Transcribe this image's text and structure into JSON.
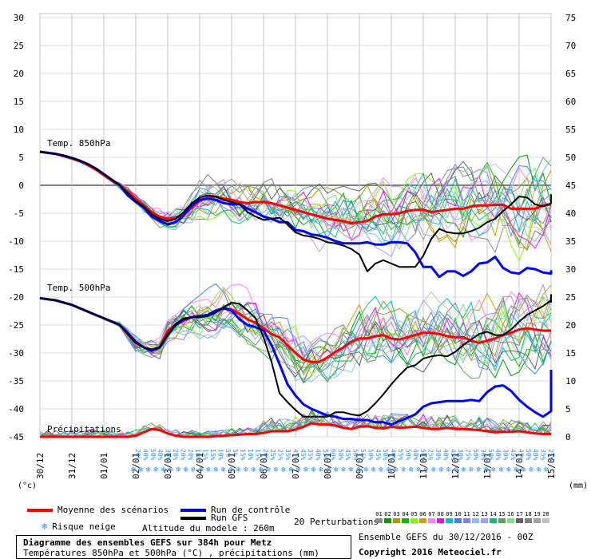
{
  "chart_data": {
    "type": "line",
    "x_labels": [
      "30/12",
      "31/12",
      "01/01",
      "02/01",
      "03/01",
      "04/01",
      "05/01",
      "06/01",
      "07/01",
      "08/01",
      "09/01",
      "10/01",
      "11/01",
      "12/01",
      "13/01",
      "14/01",
      "15/01"
    ],
    "y_left_ticks": [
      30,
      25,
      20,
      15,
      10,
      5,
      0,
      -5,
      -10,
      -15,
      -20,
      -25,
      -30,
      -35,
      -40,
      -45
    ],
    "y_right_ticks": [
      75,
      70,
      65,
      60,
      55,
      50,
      45,
      40,
      35,
      30,
      25,
      20,
      15,
      10,
      5,
      0
    ],
    "left_unit": "(°c)",
    "right_unit": "(mm)",
    "panel_labels": {
      "t850": "Temp. 850hPa",
      "t500": "Temp. 500hPa",
      "precip": "Précipitations"
    },
    "snow_risk_percent": [
      "20%",
      "40%",
      "50%",
      "40%",
      "30%",
      "20%",
      "20%",
      "20%",
      "10%",
      "15%",
      "15%",
      "10%",
      "5%",
      "5%",
      "15%",
      "10%",
      "15%",
      "20%",
      "25%",
      "25%",
      "35%",
      "45%",
      "45%",
      "35%",
      "40%",
      "55%",
      "60%",
      "50%",
      "45%",
      "50%",
      "55%",
      "50%",
      "45%",
      "50%",
      "40%",
      "55%",
      "50%",
      "40%",
      "50%",
      "25%",
      "30%",
      "40%",
      "45%",
      "30%",
      "25%",
      "50%",
      "30%",
      "50%",
      "40%",
      "30%",
      "45%",
      "45%",
      "50%",
      "40%",
      "35%",
      "25%"
    ],
    "series": [
      {
        "name": "Moyenne des scénarios",
        "color": "#ff0000",
        "t850": [
          6,
          5.8,
          5.6,
          5.2,
          4.8,
          4.3,
          3.6,
          2.8,
          1.8,
          0.8,
          0,
          -1.2,
          -2.4,
          -3.6,
          -4.8,
          -5.6,
          -6,
          -5.8,
          -5.2,
          -4,
          -2.8,
          -2.2,
          -2,
          -2.4,
          -2.6,
          -3,
          -3.2,
          -3,
          -3,
          -3.2,
          -3.6,
          -4,
          -4.4,
          -4.8,
          -5.2,
          -5.6,
          -6,
          -6.2,
          -6.4,
          -6.8,
          -6.6,
          -6.4,
          -5.6,
          -5.2,
          -5.2,
          -5,
          -4.6,
          -4.4,
          -4.4,
          -4.8,
          -4.6,
          -4.4,
          -4.2,
          -4.2,
          -3.8,
          -3.6,
          -3.6,
          -3.5,
          -3.5,
          -4.2,
          -4.2,
          -4.2,
          -4.2,
          -3.6,
          -3.4
        ],
        "t500": [
          -20.2,
          -20.4,
          -20.6,
          -21,
          -21.4,
          -22,
          -22.6,
          -23.2,
          -23.8,
          -24.4,
          -25,
          -26.6,
          -28.2,
          -29,
          -29.4,
          -29,
          -26,
          -25,
          -24.2,
          -23.6,
          -23.4,
          -23.2,
          -22.6,
          -22,
          -22.2,
          -23,
          -24,
          -24.6,
          -25.6,
          -26.6,
          -27.2,
          -28.6,
          -30,
          -31.2,
          -31.6,
          -31.6,
          -30.8,
          -29.8,
          -29,
          -28,
          -27.4,
          -27.4,
          -27,
          -26.8,
          -27.4,
          -27.6,
          -27.2,
          -26.8,
          -26.4,
          -26.4,
          -26.6,
          -27,
          -27.2,
          -27.2,
          -27.8,
          -28.2,
          -27.8,
          -27.4,
          -26.8,
          -26.4,
          -25.8,
          -25.6,
          -25.8,
          -26,
          -26
        ],
        "precip": [
          0,
          0,
          0,
          0,
          0,
          0,
          0,
          0,
          0,
          0,
          0,
          0,
          0.2,
          0.8,
          1.4,
          1.2,
          0.6,
          0.2,
          0,
          0,
          0,
          0,
          0.1,
          0.2,
          0.3,
          0.4,
          0.5,
          0.5,
          0.7,
          1,
          1,
          1,
          1.3,
          1.8,
          2.4,
          2.2,
          2.2,
          2,
          1.6,
          1.4,
          1.8,
          1.9,
          1.6,
          1.5,
          1.8,
          1.6,
          1.7,
          1.8,
          1.6,
          1.4,
          1.4,
          1.6,
          1.4,
          1.4,
          1.3,
          1.2,
          1,
          0.8,
          0.9,
          0.9,
          1,
          0.8,
          0.6,
          0.5,
          0.5
        ]
      },
      {
        "name": "Run de contrôle",
        "color": "#0000ff",
        "t850": [
          6,
          5.8,
          5.6,
          5.3,
          4.9,
          4.4,
          3.8,
          3,
          2,
          1,
          0,
          -1.8,
          -3,
          -4,
          -5.6,
          -6.4,
          -7,
          -6.6,
          -5.4,
          -3.6,
          -2.6,
          -2.4,
          -2.6,
          -3.2,
          -3.4,
          -3.4,
          -4.2,
          -4.8,
          -5.6,
          -6,
          -6.6,
          -6.6,
          -8,
          -8.2,
          -8.8,
          -9,
          -9.4,
          -10,
          -10.4,
          -10.4,
          -10.4,
          -10.2,
          -10.6,
          -10.6,
          -10.2,
          -10.2,
          -10.4,
          -12,
          -14.6,
          -14.6,
          -16.4,
          -15.4,
          -15.4,
          -16.2,
          -15.4,
          -14,
          -13.8,
          -12.8,
          -14.8,
          -15.6,
          -15.8,
          -14.8,
          -15,
          -15.6,
          -15.8,
          -15.2
        ],
        "t500": [
          -20.2,
          -20.4,
          -20.6,
          -21,
          -21.4,
          -22,
          -22.6,
          -23.2,
          -23.8,
          -24.4,
          -25,
          -26.4,
          -28,
          -29,
          -29.6,
          -29,
          -26.8,
          -25,
          -24,
          -23.6,
          -23.4,
          -23.2,
          -22.4,
          -22,
          -22.4,
          -24,
          -25,
          -25.4,
          -26,
          -28.6,
          -32,
          -35.6,
          -37.6,
          -39.2,
          -40,
          -40.6,
          -41.2,
          -41.4,
          -41.8,
          -41.8,
          -42,
          -42,
          -42.4,
          -42.4,
          -42.8,
          -42.2,
          -41.6,
          -41,
          -39.6,
          -39,
          -38.8,
          -38.6,
          -38.6,
          -38.6,
          -38.4,
          -38.6,
          -37,
          -36,
          -35.8,
          -36.8,
          -38.4,
          -39.6,
          -40.6,
          -41.4,
          -40.4,
          -38.4,
          -36,
          -33
        ]
      },
      {
        "name": "Run GFS",
        "color": "#000000",
        "t850": [
          6,
          5.8,
          5.6,
          5.3,
          4.9,
          4.4,
          3.8,
          3,
          2,
          1,
          0,
          -1.4,
          -2.8,
          -3.8,
          -5.2,
          -6,
          -6.4,
          -6,
          -4.8,
          -3.2,
          -2.2,
          -1.8,
          -2,
          -2.6,
          -3,
          -3.4,
          -4.8,
          -5.6,
          -6.2,
          -6,
          -5.8,
          -7,
          -8.4,
          -9,
          -9.2,
          -9.6,
          -10.2,
          -10.4,
          -10.8,
          -11.4,
          -12.4,
          -15.4,
          -14,
          -13.4,
          -14,
          -14.6,
          -14.6,
          -14.6,
          -12.6,
          -9.6,
          -7.8,
          -8.4,
          -8.6,
          -8.6,
          -8.2,
          -7.6,
          -6.6,
          -6,
          -4.6,
          -3.4,
          -2,
          -2.2,
          -3.4,
          -3.8,
          -3.2,
          -2.4,
          -2.2,
          -1.6
        ],
        "t500": [
          -20.2,
          -20.4,
          -20.6,
          -21,
          -21.4,
          -22,
          -22.6,
          -23.2,
          -23.8,
          -24.4,
          -25,
          -26.6,
          -28.2,
          -29,
          -29.4,
          -29,
          -26.6,
          -24.8,
          -23.8,
          -23.6,
          -23.6,
          -23.4,
          -22.8,
          -21.8,
          -21,
          -21.2,
          -22.4,
          -23.8,
          -27.2,
          -31.6,
          -37.2,
          -38.8,
          -40.2,
          -41.4,
          -41.4,
          -41.4,
          -41.4,
          -40.6,
          -40.6,
          -41,
          -41.2,
          -40.4,
          -39,
          -37.4,
          -35.6,
          -34,
          -32.6,
          -32.2,
          -31,
          -30.6,
          -30.4,
          -30.6,
          -29.8,
          -28.6,
          -27.6,
          -26.6,
          -26.2,
          -26.8,
          -26.8,
          -25.8,
          -24.4,
          -23.2,
          -22.4,
          -21.6,
          -20.6,
          -19.6,
          -20,
          -21
        ]
      }
    ],
    "legend": {
      "mean": "Moyenne des scénarios",
      "control": "Run de contrôle",
      "gfs": "Run GFS",
      "snow": "Risque neige",
      "altitude": "Altitude du modele : 260m",
      "perturbations_label": "20 Perturbations",
      "perturbation_ids": [
        "01",
        "02",
        "03",
        "04",
        "05",
        "06",
        "07",
        "08",
        "09",
        "10",
        "11",
        "12",
        "13",
        "14",
        "15",
        "16",
        "17",
        "18",
        "19",
        "20"
      ],
      "perturbation_colors": [
        "#8c8c8c",
        "#00a000",
        "#a0a000",
        "#00c000",
        "#80ff00",
        "#d0a000",
        "#ff80ff",
        "#ff00ff",
        "#00c0c0",
        "#4080ff",
        "#8080ff",
        "#80c0ff",
        "#a0a0ff",
        "#00c080",
        "#60a060",
        "#80e080",
        "#606060",
        "#808080",
        "#a0a0a0",
        "#c0c0c0"
      ]
    },
    "footer": {
      "title": "Diagramme des ensembles GEFS sur 384h pour Metz",
      "subtitle": "Températures 850hPa et 500hPa (°C) , précipitations (mm)",
      "run": "Ensemble GEFS du 30/12/2016 - 00Z",
      "copyright": "Copyright 2016 Meteociel.fr"
    }
  }
}
